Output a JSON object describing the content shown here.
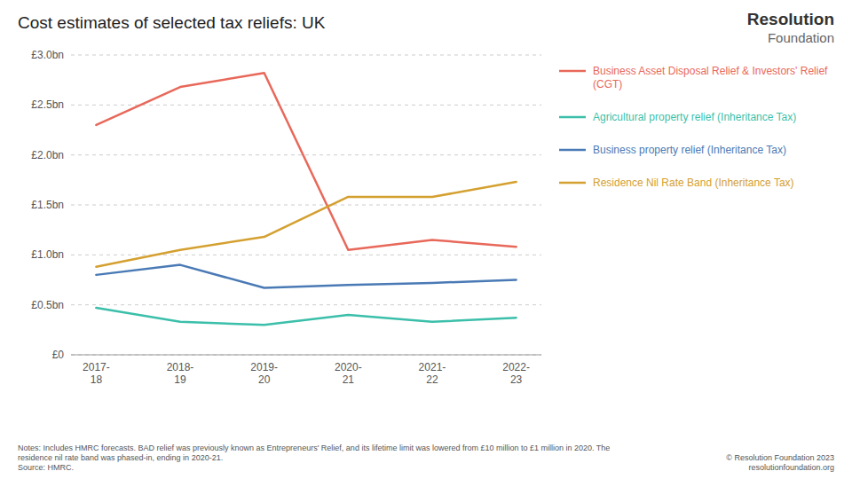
{
  "chart_data": {
    "type": "line",
    "title": "Cost estimates of selected tax reliefs: UK",
    "categories": [
      "2017-\n18",
      "2018-\n19",
      "2019-\n20",
      "2020-\n21",
      "2021-\n22",
      "2022-\n23"
    ],
    "series": [
      {
        "name": "Business Asset Disposal Relief & Investors' Relief (CGT)",
        "color": "#e8685a",
        "values": [
          2.3,
          2.68,
          2.82,
          1.05,
          1.15,
          1.08
        ]
      },
      {
        "name": "Agricultural property relief (Inheritance Tax)",
        "color": "#3bbfaa",
        "values": [
          0.47,
          0.33,
          0.3,
          0.4,
          0.33,
          0.37
        ]
      },
      {
        "name": "Business property relief (Inheritance Tax)",
        "color": "#4a7ab5",
        "values": [
          0.8,
          0.9,
          0.67,
          0.7,
          0.72,
          0.75
        ]
      },
      {
        "name": "Residence Nil Rate Band (Inheritance Tax)",
        "color": "#d4a030",
        "values": [
          0.88,
          1.05,
          1.18,
          1.58,
          1.58,
          1.73
        ]
      }
    ],
    "ylim": [
      0,
      3.0
    ],
    "yticks": [
      {
        "value": 0,
        "label": "£0"
      },
      {
        "value": 0.5,
        "label": "£0.5bn"
      },
      {
        "value": 1.0,
        "label": "£1.0bn"
      },
      {
        "value": 1.5,
        "label": "£1.5bn"
      },
      {
        "value": 2.0,
        "label": "£2.0bn"
      },
      {
        "value": 2.5,
        "label": "£2.5bn"
      },
      {
        "value": 3.0,
        "label": "£3.0bn"
      }
    ],
    "grid": true,
    "legend": "right",
    "annotations": [
      "Notes: Includes HMRC forecasts. BAD relief was previously known as Entrepreneurs' Relief, and its lifetime limit was lowered from £10 million to £1 million in 2020. The\nresidence nil rate band was phased-in, ending in 2020-21.\nSource: HMRC.",
      "© Resolution Foundation 2023\nresolutionfoundation.org",
      "Resolution",
      "Foundation"
    ]
  }
}
